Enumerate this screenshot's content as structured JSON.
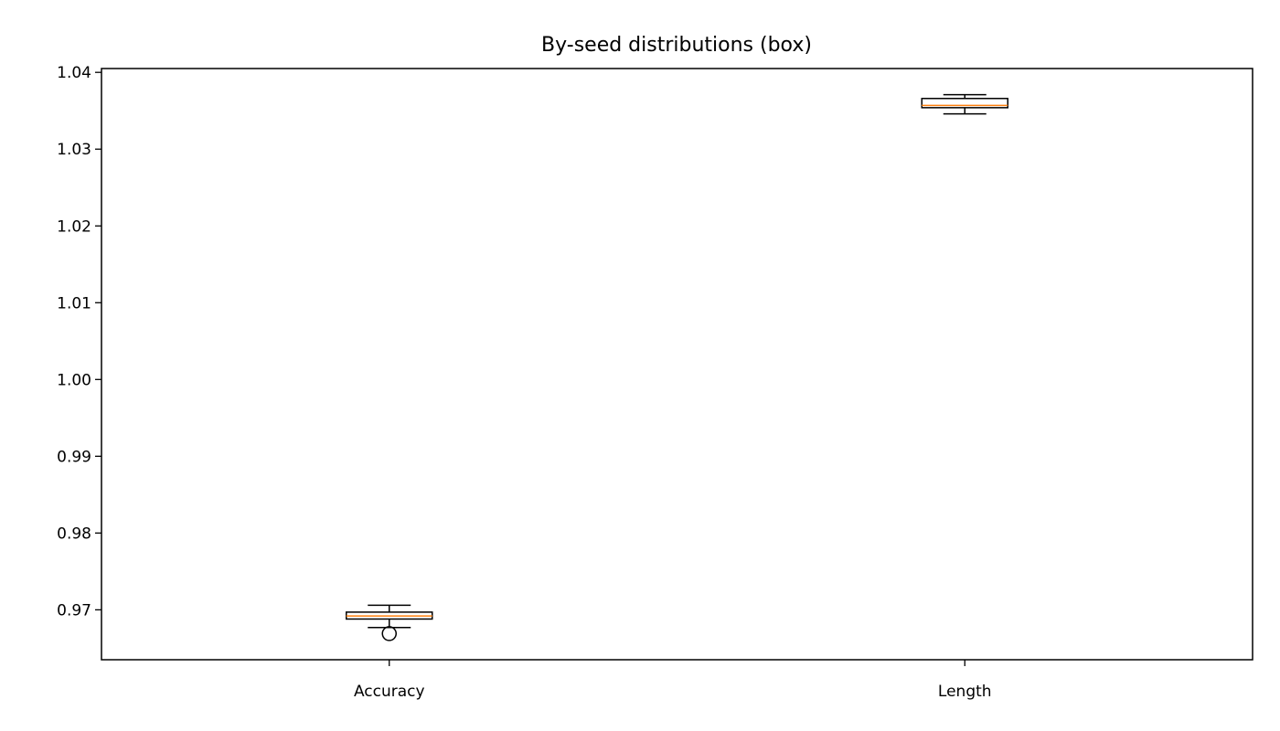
{
  "chart_data": {
    "type": "box",
    "title": "By-seed distributions (box)",
    "xlabel": "",
    "ylabel": "",
    "categories": [
      "Accuracy",
      "Length"
    ],
    "ylim": [
      0.9635,
      1.0405
    ],
    "yticks": [
      0.97,
      0.98,
      0.99,
      1.0,
      1.01,
      1.02,
      1.03,
      1.04
    ],
    "ytick_labels": [
      "0.97",
      "0.98",
      "0.99",
      "1.00",
      "1.01",
      "1.02",
      "1.03",
      "1.04"
    ],
    "boxes": [
      {
        "category": "Accuracy",
        "whisker_low": 0.9677,
        "q1": 0.9688,
        "median": 0.9692,
        "q3": 0.9697,
        "whisker_high": 0.9706,
        "outliers": [
          0.9669
        ]
      },
      {
        "category": "Length",
        "whisker_low": 1.0346,
        "q1": 1.0354,
        "median": 1.0357,
        "q3": 1.0366,
        "whisker_high": 1.0371,
        "outliers": []
      }
    ],
    "grid": false,
    "colors": {
      "box": "#000000",
      "median": "#ff7f0e",
      "whisker": "#000000",
      "outlier": "#000000"
    }
  }
}
